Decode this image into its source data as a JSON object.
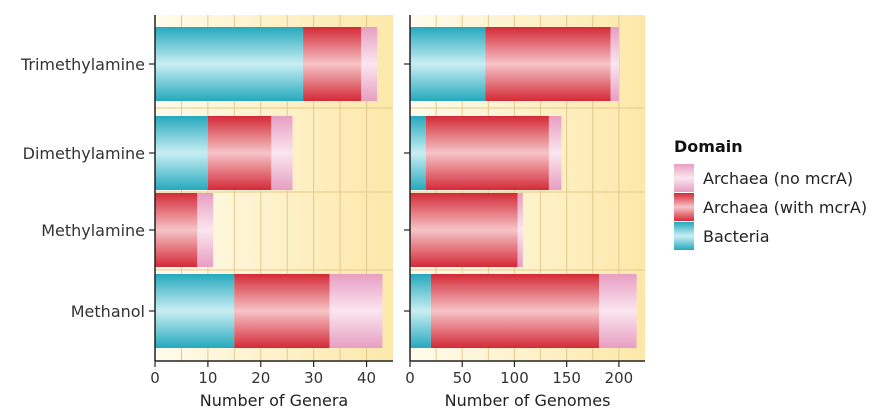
{
  "chart_data": [
    {
      "type": "bar",
      "orientation": "horizontal",
      "stacked": true,
      "categories": [
        "Trimethylamine",
        "Dimethylamine",
        "Methylamine",
        "Methanol"
      ],
      "series": [
        {
          "name": "Bacteria",
          "values": [
            28,
            10,
            0,
            15
          ]
        },
        {
          "name": "Archaea (with mcrA)",
          "values": [
            11,
            12,
            8,
            18
          ]
        },
        {
          "name": "Archaea (no mcrA)",
          "values": [
            3,
            4,
            3,
            10
          ]
        }
      ],
      "xlabel": "Number of Genera",
      "xlim": [
        0,
        45
      ],
      "xticks": [
        0,
        10,
        20,
        30,
        40
      ],
      "grid": true
    },
    {
      "type": "bar",
      "orientation": "horizontal",
      "stacked": true,
      "categories": [
        "Trimethylamine",
        "Dimethylamine",
        "Methylamine",
        "Methanol"
      ],
      "series": [
        {
          "name": "Bacteria",
          "values": [
            72,
            15,
            0,
            20
          ]
        },
        {
          "name": "Archaea (with mcrA)",
          "values": [
            120,
            118,
            103,
            161
          ]
        },
        {
          "name": "Archaea (no mcrA)",
          "values": [
            8,
            12,
            5,
            36
          ]
        }
      ],
      "xlabel": "Number of Genomes",
      "xlim": [
        0,
        225
      ],
      "xticks": [
        0,
        50,
        100,
        150,
        200
      ],
      "grid": true
    }
  ],
  "legend": {
    "title": "Domain",
    "position": "right",
    "items": [
      {
        "label": "Archaea (no mcrA)",
        "color": "#e8a6c6"
      },
      {
        "label": "Archaea (with mcrA)",
        "color": "#d9303c"
      },
      {
        "label": "Bacteria",
        "color": "#2bb4c6"
      }
    ]
  },
  "colors": {
    "Bacteria": "#2bb4c6",
    "Archaea (with mcrA)": "#d9303c",
    "Archaea (no mcrA)": "#e8a6c6",
    "background_start": "#fffbec",
    "background_end": "#fde8a9",
    "grid": "#e3c98a"
  }
}
